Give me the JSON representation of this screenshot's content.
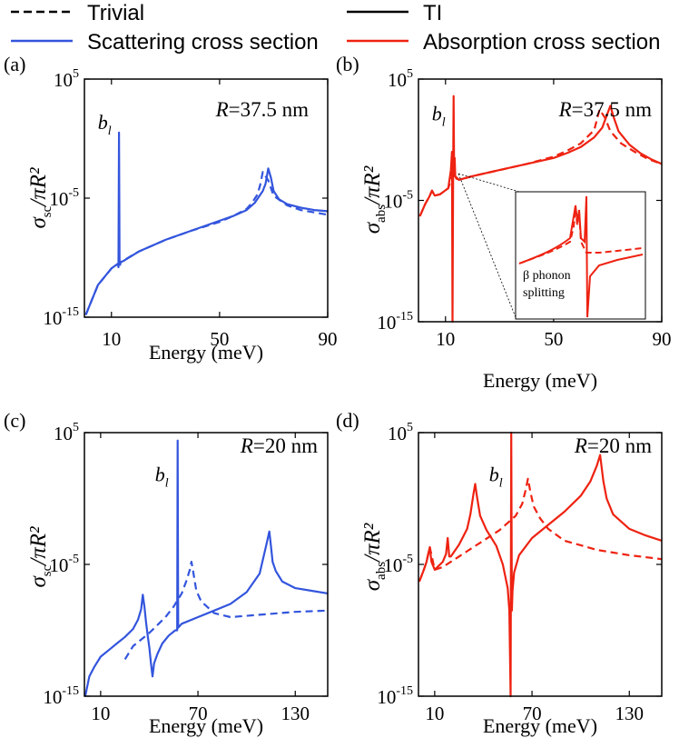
{
  "legend": {
    "items": [
      {
        "label": "Trivial",
        "style": "dashed",
        "color": "#000000"
      },
      {
        "label": "TI",
        "style": "solid",
        "color": "#000000"
      },
      {
        "label": "Scattering cross section",
        "style": "solid",
        "color": "#3355dd"
      },
      {
        "label": "Absorption cross section",
        "style": "solid",
        "color": "#ee2211"
      }
    ]
  },
  "colors": {
    "scattering": "#3355dd",
    "absorption": "#ee2211",
    "axis": "#000000"
  },
  "chart_data": [
    {
      "type": "line",
      "panel": "(a)",
      "title": "",
      "xlabel": "Energy (meV)",
      "ylabel": {
        "sigma": "σ",
        "sub": "sc",
        "denom": "/πR²"
      },
      "radius_label": {
        "R": "R",
        "value": "=37.5 nm"
      },
      "peak_label": {
        "main": "b",
        "sub": "l",
        "x": 13,
        "logy": 0.8
      },
      "xlim": [
        0,
        90
      ],
      "xticks": [
        10,
        50,
        90
      ],
      "ylim_log10": [
        -15,
        5
      ],
      "yticks": [
        {
          "base": "10",
          "exp": "5",
          "value": 5
        },
        {
          "base": "10",
          "exp": "-5",
          "value": -5
        },
        {
          "base": "10",
          "exp": "-15",
          "value": -15
        }
      ],
      "color": "#3355dd",
      "series": [
        {
          "name": "Trivial",
          "style": "dashed",
          "x": [
            0.5,
            5,
            10,
            12.5,
            20,
            30,
            40,
            50,
            55,
            60,
            62,
            64,
            65,
            66,
            68,
            70,
            75,
            80,
            85,
            90
          ],
          "logy": [
            -14.8,
            -12.3,
            -10.9,
            -10.5,
            -9.5,
            -8.5,
            -7.7,
            -7,
            -6.5,
            -5.9,
            -5.4,
            -4.7,
            -3.9,
            -2.8,
            -3.5,
            -4.8,
            -5.6,
            -6,
            -6.2,
            -6.4
          ]
        },
        {
          "name": "TI",
          "style": "solid",
          "x": [
            0.5,
            5,
            10,
            12.4,
            12.6,
            12.8,
            13,
            13.2,
            13.4,
            15,
            20,
            30,
            40,
            50,
            55,
            60,
            63,
            66,
            67,
            68,
            69,
            70,
            72,
            75,
            80,
            85,
            90
          ],
          "logy": [
            -14.8,
            -12.3,
            -10.9,
            -10.5,
            -10.8,
            0.5,
            -10.2,
            -10.6,
            -10.4,
            -10.2,
            -9.5,
            -8.5,
            -7.7,
            -6.9,
            -6.5,
            -6,
            -5.4,
            -4.4,
            -3.8,
            -2.5,
            -3.3,
            -4.4,
            -5.1,
            -5.5,
            -5.8,
            -6,
            -6.1
          ]
        }
      ]
    },
    {
      "type": "line",
      "panel": "(b)",
      "title": "",
      "xlabel": "Energy (meV)",
      "ylabel": {
        "sigma": "σ",
        "sub": "abs",
        "denom": "/πR²"
      },
      "radius_label": {
        "R": "R",
        "value": "=37.5 nm"
      },
      "peak_label": {
        "main": "b",
        "sub": "l",
        "x": 13,
        "logy": 1.6
      },
      "xlim": [
        0,
        90
      ],
      "xticks": [
        10,
        50,
        90
      ],
      "ylim_log10": [
        -15,
        5
      ],
      "yticks": [
        {
          "base": "10",
          "exp": "5",
          "value": 5
        },
        {
          "base": "10",
          "exp": "-5",
          "value": -5
        },
        {
          "base": "10",
          "exp": "-15",
          "value": -15
        }
      ],
      "color": "#ee2211",
      "inset_label": {
        "line1": "β phonon",
        "line2": "splitting"
      },
      "series": [
        {
          "name": "Trivial",
          "style": "dashed",
          "x": [
            0.5,
            2.5,
            4,
            5,
            6,
            8,
            11,
            12.5,
            13,
            13.5,
            15,
            20,
            30,
            40,
            50,
            55,
            60,
            65,
            67,
            69,
            71,
            75,
            80,
            85,
            90
          ],
          "logy": [
            -6.3,
            -5.3,
            -4.7,
            -4.2,
            -4.6,
            -4.5,
            -4,
            -3,
            -1.2,
            -3,
            -3.3,
            -3,
            -2.5,
            -2,
            -1.4,
            -0.9,
            -0.3,
            0.8,
            2.5,
            1.8,
            0.7,
            -0.3,
            -1,
            -1.6,
            -2
          ]
        },
        {
          "name": "TI",
          "style": "solid",
          "x": [
            0.5,
            2.5,
            4,
            5,
            6,
            8,
            11,
            12,
            12.4,
            12.6,
            12.8,
            13,
            13.2,
            13.4,
            13.6,
            14,
            15,
            20,
            30,
            40,
            50,
            55,
            60,
            65,
            68,
            70,
            71,
            72,
            74,
            78,
            82,
            86,
            90
          ],
          "logy": [
            -6.3,
            -5.3,
            -4.7,
            -4.2,
            -4.6,
            -4.5,
            -4,
            -2.5,
            -1,
            -15,
            -4,
            3.6,
            -3,
            -1.5,
            -3,
            -3.2,
            -3.3,
            -3,
            -2.5,
            -2,
            -1.5,
            -1.1,
            -0.6,
            0.2,
            1,
            2.2,
            2.8,
            2,
            0.7,
            -0.4,
            -1.1,
            -1.6,
            -2
          ]
        }
      ]
    },
    {
      "type": "line",
      "panel": "(c)",
      "title": "",
      "xlabel": "Energy (meV)",
      "ylabel": {
        "sigma": "σ",
        "sub": "sc",
        "denom": "/πR²"
      },
      "radius_label": {
        "R": "R",
        "value": "=20 nm"
      },
      "peak_label": {
        "main": "b",
        "sub": "l",
        "x": 57,
        "logy": 1.3
      },
      "xlim": [
        0,
        150
      ],
      "xticks": [
        10,
        70,
        130
      ],
      "ylim_log10": [
        -15,
        5
      ],
      "yticks": [
        {
          "base": "10",
          "exp": "5",
          "value": 5
        },
        {
          "base": "10",
          "exp": "-5",
          "value": -5
        },
        {
          "base": "10",
          "exp": "-15",
          "value": -15
        }
      ],
      "color": "#3355dd",
      "series": [
        {
          "name": "Trivial",
          "style": "dashed",
          "x": [
            25,
            30,
            40,
            50,
            55,
            60,
            63,
            65,
            66,
            67,
            69,
            72,
            80,
            90,
            110,
            130,
            150
          ],
          "logy": [
            -12.2,
            -11.2,
            -10.2,
            -9,
            -8.2,
            -7.2,
            -6.2,
            -5.4,
            -4.8,
            -5.5,
            -7,
            -7.8,
            -8.7,
            -9,
            -8.8,
            -8.6,
            -8.5
          ]
        },
        {
          "name": "TI",
          "style": "solid",
          "x": [
            0.5,
            3,
            6,
            10,
            15,
            20,
            25,
            30,
            33,
            35,
            36,
            37,
            38,
            39,
            40,
            41,
            42,
            43,
            45,
            48,
            52,
            56,
            57.2,
            57.5,
            57.8,
            60,
            70,
            80,
            90,
            100,
            108,
            112,
            114,
            115,
            116,
            118,
            122,
            130,
            140,
            150
          ],
          "logy": [
            -15,
            -13.5,
            -12.8,
            -12,
            -11.5,
            -11,
            -10.5,
            -9.9,
            -9.2,
            -8.4,
            -7.3,
            -8.2,
            -9.4,
            -10.4,
            -11.3,
            -12.5,
            -13.5,
            -12.5,
            -11.8,
            -11,
            -10.4,
            -10,
            -10,
            4.4,
            -9.8,
            -9.5,
            -9,
            -8.5,
            -8,
            -7.1,
            -5.7,
            -3.6,
            -2.5,
            -3.6,
            -4.8,
            -5.5,
            -6.3,
            -6.8,
            -7,
            -7.2
          ]
        }
      ]
    },
    {
      "type": "line",
      "panel": "(d)",
      "title": "",
      "xlabel": "Energy (meV)",
      "ylabel": {
        "sigma": "σ",
        "sub": "abs",
        "denom": "/πR²"
      },
      "radius_label": {
        "R": "R",
        "value": "=20 nm"
      },
      "peak_label": {
        "main": "b",
        "sub": "l",
        "x": 57,
        "logy": 1.3
      },
      "xlim": [
        0,
        150
      ],
      "xticks": [
        10,
        70,
        130
      ],
      "ylim_log10": [
        -15,
        5
      ],
      "yticks": [
        {
          "base": "10",
          "exp": "5",
          "value": 5
        },
        {
          "base": "10",
          "exp": "-5",
          "value": -5
        },
        {
          "base": "10",
          "exp": "-15",
          "value": -15
        }
      ],
      "color": "#ee2211",
      "series": [
        {
          "name": "Trivial",
          "style": "dashed",
          "x": [
            0.5,
            3,
            5,
            7,
            10,
            15,
            20,
            25,
            30,
            40,
            50,
            60,
            64,
            66,
            67.5,
            69,
            71,
            75,
            80,
            90,
            110,
            130,
            150
          ],
          "logy": [
            -6.3,
            -5.5,
            -4.8,
            -3.7,
            -5.4,
            -5.2,
            -4.8,
            -4.4,
            -4,
            -3.2,
            -2.4,
            -1.3,
            -0.4,
            0.6,
            1.5,
            0.5,
            -0.6,
            -1.5,
            -2.3,
            -3.2,
            -3.9,
            -4.3,
            -4.6
          ]
        },
        {
          "name": "TI",
          "style": "solid",
          "x": [
            0.5,
            3,
            5,
            6,
            7,
            8,
            10,
            15,
            17,
            18,
            19,
            20,
            25,
            30,
            32,
            34,
            35,
            36,
            38,
            42,
            48,
            52,
            55,
            56,
            56.8,
            57.2,
            57.6,
            58,
            59,
            62,
            70,
            80,
            90,
            100,
            106,
            110,
            112,
            113,
            114,
            116,
            120,
            130,
            140,
            150
          ],
          "logy": [
            -6.3,
            -5.5,
            -4.8,
            -4.2,
            -3.7,
            -4.8,
            -5.4,
            -4.8,
            -4.2,
            -3,
            -4.4,
            -4.4,
            -3.5,
            -2.3,
            -1.2,
            0.4,
            1.1,
            0.2,
            -1.3,
            -2.4,
            -3.6,
            -5,
            -6.8,
            -8.5,
            -15,
            5,
            -8.5,
            -7,
            -5.6,
            -4.3,
            -3,
            -2,
            -1,
            0.2,
            1.3,
            2.5,
            3.3,
            2.3,
            1.3,
            0,
            -1.2,
            -2.3,
            -2.8,
            -3.2
          ]
        }
      ]
    }
  ]
}
